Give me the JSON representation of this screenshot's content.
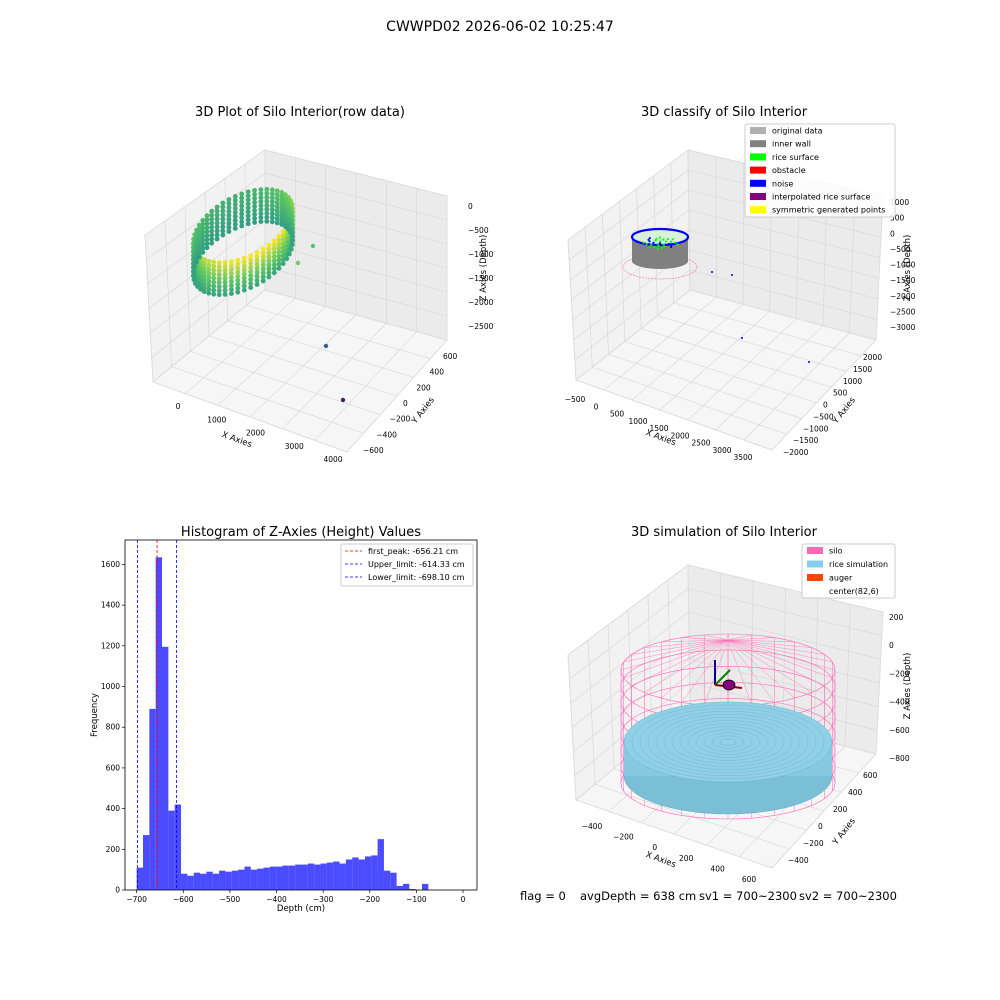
{
  "suptitle": "CWWPD02 2026-06-02 10:25:47",
  "chart_data": [
    {
      "type": "scatter",
      "projection": "3d",
      "title": "3D Plot of Silo Interior(row data)",
      "xlabel": "X Axies",
      "ylabel": "Y Axies",
      "zlabel": "Z Axies (Depth)",
      "xticks": [
        "0",
        "1000",
        "2000",
        "3000",
        "4000"
      ],
      "yticks": [
        "600",
        "400",
        "200",
        "0",
        "−200",
        "−400",
        "−600"
      ],
      "zticks": [
        "0",
        "−500",
        "−1000",
        "−1500",
        "−2000",
        "−2500"
      ],
      "xlim": [
        -500,
        4000
      ],
      "ylim": [
        -600,
        600
      ],
      "zlim": [
        -2700,
        0
      ],
      "colormap": "viridis",
      "grid": true
    },
    {
      "type": "scatter",
      "projection": "3d",
      "title": "3D classify of Silo Interior",
      "xlabel": "X Axies",
      "ylabel": "Y Axies",
      "zlabel": "Z Axies (Depth)",
      "xticks": [
        "−500",
        "0",
        "500",
        "1000",
        "1500",
        "2000",
        "2500",
        "3000",
        "3500"
      ],
      "yticks": [
        "2000",
        "1500",
        "1000",
        "500",
        "0",
        "−500",
        "−1000",
        "−1500",
        "−2000"
      ],
      "zticks": [
        "1000",
        "500",
        "0",
        "−500",
        "−1000",
        "−1500",
        "−2000",
        "−2500",
        "−3000"
      ],
      "legend": [
        {
          "name": "original data",
          "color": "#b0b0b0"
        },
        {
          "name": "inner wall",
          "color": "#808080"
        },
        {
          "name": "rice surface",
          "color": "#00ff00"
        },
        {
          "name": "obstacle",
          "color": "#ff0000"
        },
        {
          "name": "noise",
          "color": "#0000ff"
        },
        {
          "name": "interpolated rice surface",
          "color": "#800080"
        },
        {
          "name": "symmetric generated points",
          "color": "#ffff00"
        }
      ],
      "legend_loc": "upper right",
      "grid": true
    },
    {
      "type": "bar",
      "title": "Histogram of Z-Axies (Height) Values",
      "xlabel": "Depth (cm)",
      "ylabel": "Frequency",
      "xlim": [
        -725,
        30
      ],
      "ylim": [
        0,
        1720
      ],
      "xticks": [
        "−700",
        "−600",
        "−500",
        "−400",
        "−300",
        "−200",
        "−100",
        "0"
      ],
      "yticks": [
        "0",
        "200",
        "400",
        "600",
        "800",
        "1000",
        "1200",
        "1400",
        "1600"
      ],
      "xtick_values": [
        -700,
        -600,
        -500,
        -400,
        -300,
        -200,
        -100,
        0
      ],
      "ytick_values": [
        0,
        200,
        400,
        600,
        800,
        1000,
        1200,
        1400,
        1600
      ],
      "bin_start": -700,
      "bin_width": 13.6,
      "values": [
        110,
        270,
        890,
        1635,
        1195,
        390,
        420,
        80,
        70,
        85,
        80,
        90,
        80,
        95,
        90,
        95,
        100,
        115,
        100,
        105,
        110,
        115,
        115,
        120,
        120,
        125,
        125,
        130,
        125,
        130,
        135,
        140,
        130,
        150,
        160,
        150,
        165,
        170,
        250,
        95,
        85,
        20,
        30,
        5,
        0,
        30
      ],
      "bar_color": "#0000ff",
      "bar_alpha": 0.7,
      "vlines": [
        {
          "x": -656.21,
          "color": "#ff0000",
          "label": "first_peak: -656.21 cm"
        },
        {
          "x": -614.33,
          "color": "#0000ff",
          "label": "Upper_limit: -614.33 cm"
        },
        {
          "x": -698.1,
          "color": "#0000ff",
          "label": "Lower_limit: -698.10 cm"
        }
      ],
      "legend_loc": "upper right"
    },
    {
      "type": "scatter",
      "projection": "3d",
      "title": "3D simulation of Silo Interior",
      "xlabel": "X Axies",
      "ylabel": "Y Axies",
      "zlabel": "Z Axies (Depth)",
      "xticks": [
        "−400",
        "−200",
        "0",
        "200",
        "400",
        "600"
      ],
      "yticks": [
        "600",
        "400",
        "200",
        "0",
        "−200",
        "−400"
      ],
      "zticks": [
        "200",
        "0",
        "−200",
        "−400",
        "−600",
        "−800"
      ],
      "legend": [
        {
          "name": "silo",
          "color": "#ff69b4"
        },
        {
          "name": "rice simulation",
          "color": "#87ceeb"
        },
        {
          "name": "auger",
          "color": "#ff4500"
        },
        {
          "name": "center(82,6)",
          "color": ""
        }
      ],
      "legend_loc": "upper right",
      "grid": true
    }
  ],
  "footer": {
    "flag": "flag = 0",
    "avg_depth": "avgDepth = 638 cm",
    "sv1": "sv1 = 700~2300",
    "sv2": "sv2 = 700~2300"
  }
}
